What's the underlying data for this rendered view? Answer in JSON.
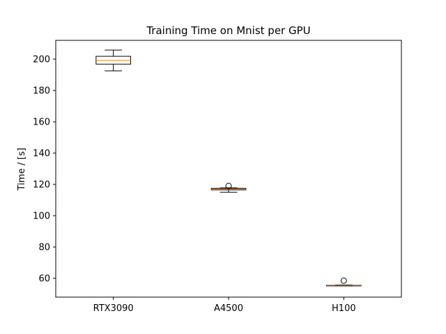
{
  "chart_data": {
    "type": "box",
    "title": "Training Time on Mnist per GPU",
    "xlabel": "",
    "ylabel": "Time / [s]",
    "categories": [
      "RTX3090",
      "A4500",
      "H100"
    ],
    "boxes": [
      {
        "name": "RTX3090",
        "whisker_low": 192.5,
        "q1": 196.8,
        "median": 199.2,
        "q3": 201.8,
        "whisker_high": 205.8,
        "outliers": []
      },
      {
        "name": "A4500",
        "whisker_low": 115.0,
        "q1": 116.5,
        "median": 117.0,
        "q3": 117.5,
        "whisker_high": 117.8,
        "outliers": [
          119.0
        ]
      },
      {
        "name": "H100",
        "whisker_low": 55.2,
        "q1": 55.3,
        "median": 55.5,
        "q3": 55.6,
        "whisker_high": 55.8,
        "outliers": [
          58.5
        ]
      }
    ],
    "ylim": [
      48,
      212
    ],
    "yticks": [
      60,
      80,
      100,
      120,
      140,
      160,
      180,
      200
    ],
    "grid": false,
    "legend": "none",
    "colors": {
      "box": "#000000",
      "median": "#ff7f0e",
      "outlier": "#000000",
      "axes": "#000000"
    }
  }
}
